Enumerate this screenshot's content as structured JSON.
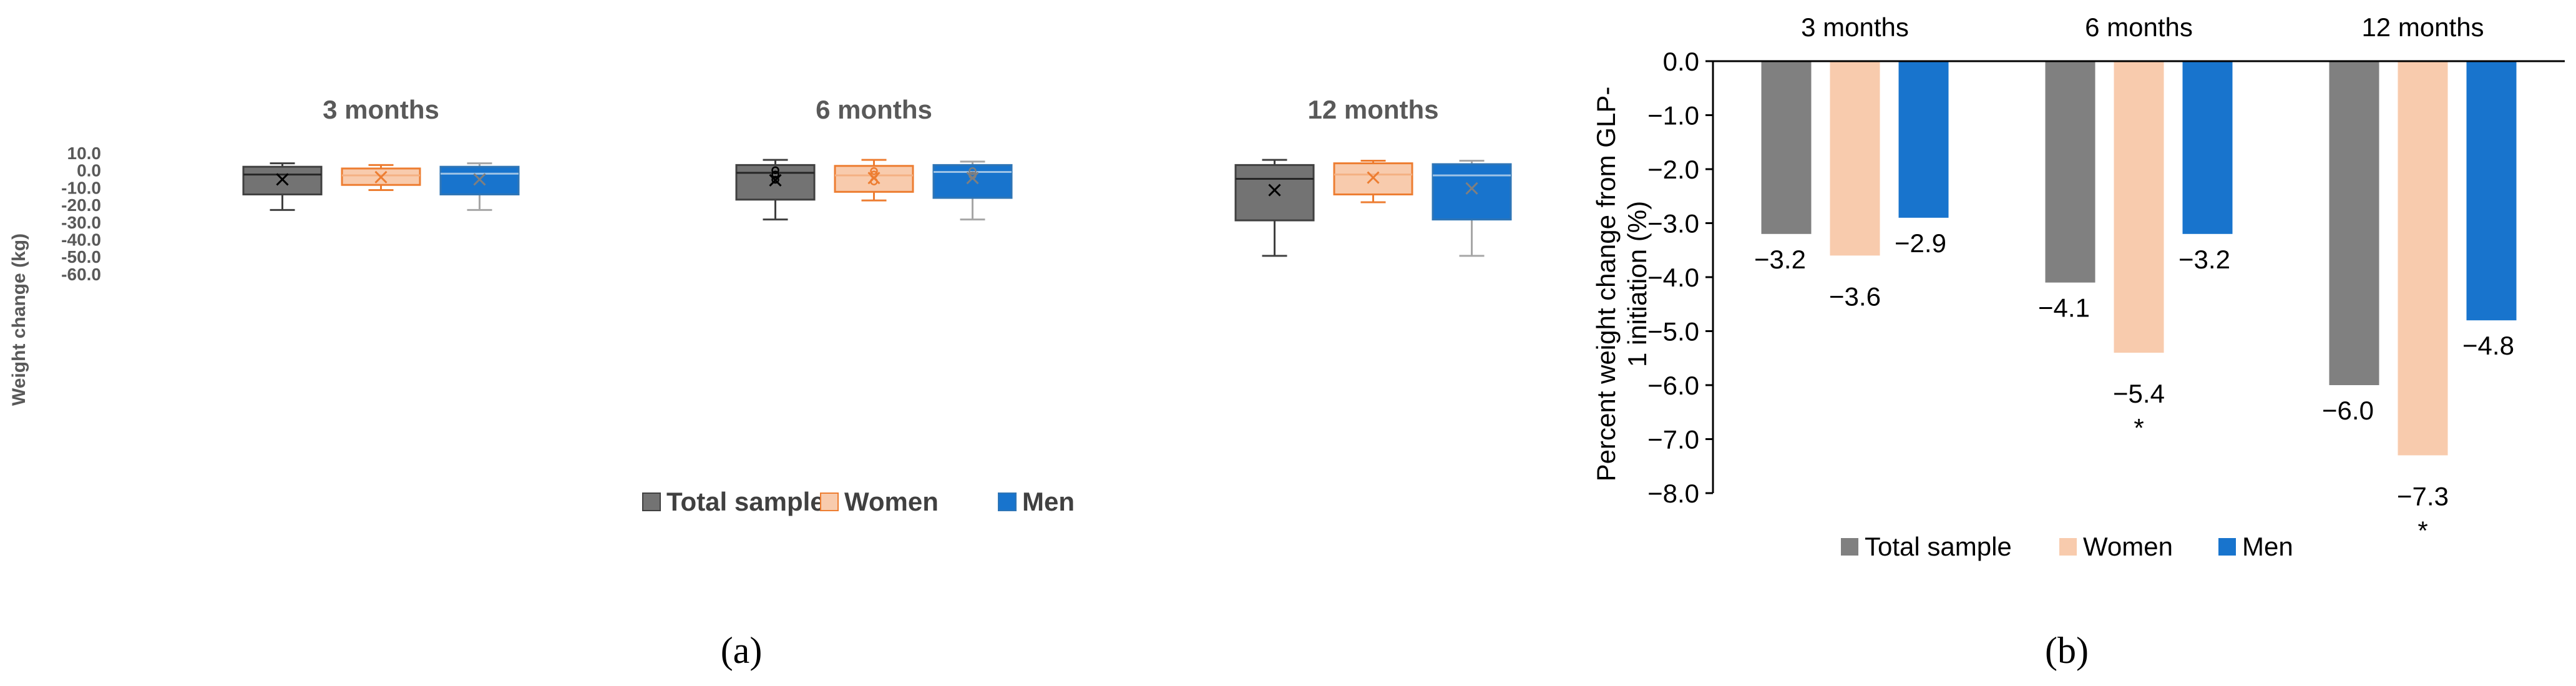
{
  "chart_data": [
    {
      "type": "box",
      "panel_label": "(a)",
      "ylabel": "Weight change (kg)",
      "yticks": [
        "10.0",
        "0.0",
        "-10.0",
        "-20.0",
        "-30.0",
        "-40.0",
        "-50.0",
        "-60.0"
      ],
      "ylim": [
        -60,
        10
      ],
      "legend": [
        "Total sample",
        "Women",
        "Men"
      ],
      "colors": {
        "total": "#737373",
        "women": "#f8cbad",
        "men": "#1874cd",
        "total_edge": "#404040",
        "women_edge": "#ed7d31",
        "men_edge": "#2e75b6"
      },
      "groups": [
        {
          "title": "3 months",
          "boxes": [
            {
              "series": "Total sample",
              "min": -23,
              "q1": -14,
              "median": -2.5,
              "q3": 2,
              "max": 4,
              "mean": -5.3,
              "outliers": []
            },
            {
              "series": "Women",
              "min": -11.5,
              "q1": -8.5,
              "median": -3,
              "q3": 1,
              "max": 3,
              "mean": -4,
              "outliers": []
            },
            {
              "series": "Men",
              "min": -23,
              "q1": -14,
              "median": -2,
              "q3": 2,
              "max": 4,
              "mean": -5.3,
              "outliers": []
            }
          ]
        },
        {
          "title": "6 months",
          "boxes": [
            {
              "series": "Total sample",
              "min": -28.5,
              "q1": -17,
              "median": -1.5,
              "q3": 3,
              "max": 6,
              "mean": -5.8,
              "outliers": [
                0,
                -2.5,
                -5.5
              ]
            },
            {
              "series": "Women",
              "min": -17.5,
              "q1": -12.5,
              "median": -3,
              "q3": 2.5,
              "max": 6,
              "mean": -4.5,
              "outliers": [
                -0.5,
                -2.5,
                -6.5
              ]
            },
            {
              "series": "Men",
              "min": -28.5,
              "q1": -16,
              "median": -1,
              "q3": 3,
              "max": 5,
              "mean": -4.5,
              "outliers": [
                -0.5,
                -3
              ]
            }
          ]
        },
        {
          "title": "12 months",
          "boxes": [
            {
              "series": "Total sample",
              "min": -49.5,
              "q1": -29,
              "median": -5,
              "q3": 3,
              "max": 6,
              "mean": -11.5,
              "outliers": []
            },
            {
              "series": "Women",
              "min": -18.5,
              "q1": -14,
              "median": -2.5,
              "q3": 4,
              "max": 5.5,
              "mean": -4.3,
              "outliers": []
            },
            {
              "series": "Men",
              "min": -49.5,
              "q1": -28.5,
              "median": -3,
              "q3": 3.5,
              "max": 5.5,
              "mean": -10.5,
              "outliers": []
            }
          ]
        }
      ]
    },
    {
      "type": "bar",
      "panel_label": "(b)",
      "ylabel": "Percent weight change from GLP-1 initiation (%)",
      "ylabel_lines": [
        "Percent weight change from GLP-",
        "1 initiation (%)"
      ],
      "yticks": [
        "0.0",
        "−1.0",
        "−2.0",
        "−3.0",
        "−4.0",
        "−5.0",
        "−6.0",
        "−7.0",
        "−8.0"
      ],
      "ylim": [
        -8,
        0
      ],
      "categories": [
        "3 months",
        "6 months",
        "12 months"
      ],
      "series": [
        {
          "name": "Total sample",
          "color": "#808080",
          "values": [
            -3.2,
            -4.1,
            -6.0
          ],
          "labels": [
            "−3.2",
            "−4.1",
            "−6.0"
          ]
        },
        {
          "name": "Women",
          "color": "#f8cbad",
          "values": [
            -3.6,
            -5.4,
            -7.3
          ],
          "labels": [
            "−3.6",
            "−5.4",
            "−7.3"
          ]
        },
        {
          "name": "Men",
          "color": "#1874cd",
          "values": [
            -2.9,
            -3.2,
            -4.8
          ],
          "labels": [
            "−2.9",
            "−3.2",
            "−4.8"
          ]
        }
      ],
      "significance_marker": "*",
      "significant": [
        {
          "category": "6 months",
          "series": "Women"
        },
        {
          "category": "12 months",
          "series": "Women"
        }
      ],
      "legend": [
        "Total sample",
        "Women",
        "Men"
      ]
    }
  ]
}
